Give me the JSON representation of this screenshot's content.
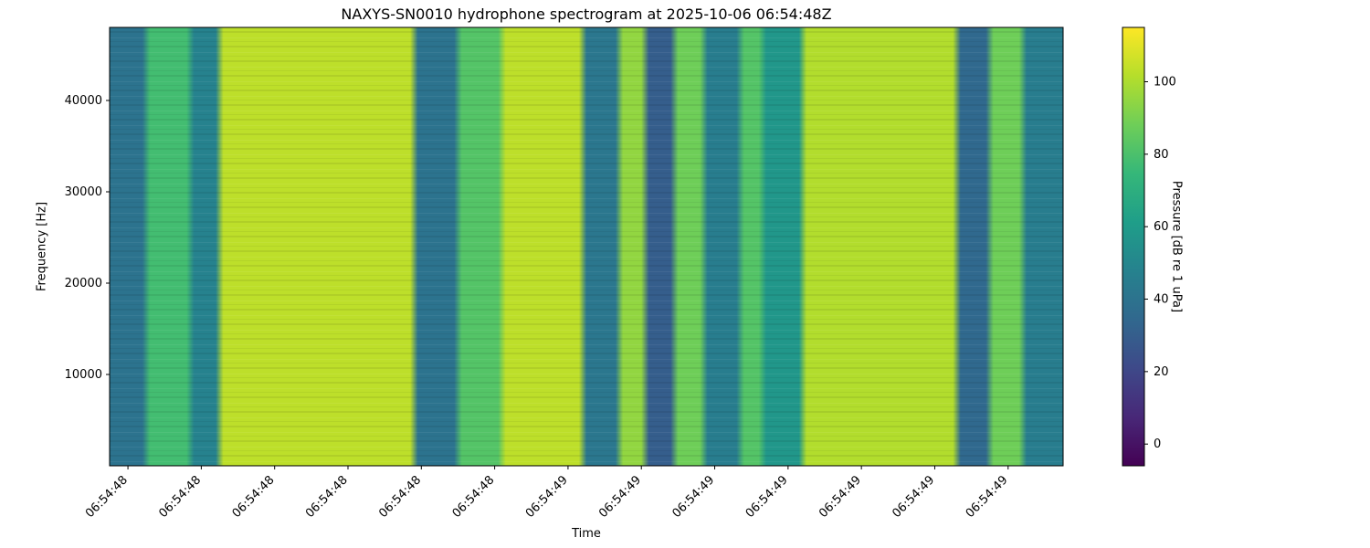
{
  "chart_data": {
    "type": "heatmap",
    "title": "NAXYS-SN0010 hydrophone spectrogram at 2025-10-06 06:54:48Z",
    "xlabel": "Time",
    "ylabel": "Frequency [Hz]",
    "colorbar_label": "Pressure [dB re 1 uPa]",
    "colormap": "viridis",
    "colorbar_range": [
      -6,
      115
    ],
    "colorbar_ticks": [
      0,
      20,
      40,
      60,
      80,
      100
    ],
    "ylim": [
      0,
      48000
    ],
    "yticks": [
      10000,
      20000,
      30000,
      40000
    ],
    "xlim": [
      -0.25,
      12.75
    ],
    "x_tick_positions": [
      0,
      1,
      2,
      3,
      4,
      5,
      6,
      7,
      8,
      9,
      10,
      11,
      12
    ],
    "x_tick_labels": [
      "06:54:48",
      "06:54:48",
      "06:54:48",
      "06:54:48",
      "06:54:48",
      "06:54:48",
      "06:54:49",
      "06:54:49",
      "06:54:49",
      "06:54:49",
      "06:54:49",
      "06:54:49",
      "06:54:49"
    ],
    "time_bands": [
      {
        "start": -0.25,
        "end": 0.25,
        "level_db": 40
      },
      {
        "start": 0.25,
        "end": 0.85,
        "level_db": 78
      },
      {
        "start": 0.85,
        "end": 1.25,
        "level_db": 48
      },
      {
        "start": 1.25,
        "end": 3.9,
        "level_db": 103
      },
      {
        "start": 3.9,
        "end": 4.5,
        "level_db": 40
      },
      {
        "start": 4.5,
        "end": 5.1,
        "level_db": 82
      },
      {
        "start": 5.1,
        "end": 6.2,
        "level_db": 103
      },
      {
        "start": 6.2,
        "end": 6.7,
        "level_db": 42
      },
      {
        "start": 6.7,
        "end": 7.05,
        "level_db": 95
      },
      {
        "start": 7.05,
        "end": 7.45,
        "level_db": 30
      },
      {
        "start": 7.45,
        "end": 7.85,
        "level_db": 88
      },
      {
        "start": 7.85,
        "end": 8.35,
        "level_db": 45
      },
      {
        "start": 8.35,
        "end": 8.65,
        "level_db": 82
      },
      {
        "start": 8.65,
        "end": 9.2,
        "level_db": 58
      },
      {
        "start": 9.2,
        "end": 11.3,
        "level_db": 101
      },
      {
        "start": 11.3,
        "end": 11.75,
        "level_db": 35
      },
      {
        "start": 11.75,
        "end": 12.2,
        "level_db": 88
      },
      {
        "start": 12.2,
        "end": 12.75,
        "level_db": 45
      }
    ]
  }
}
